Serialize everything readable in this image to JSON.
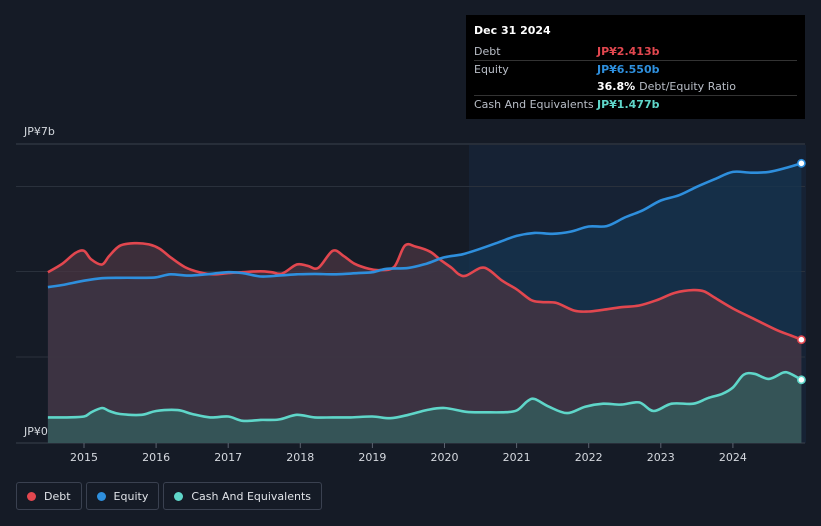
{
  "chart_data": {
    "type": "area",
    "title": "",
    "xlabel": "",
    "ylabel": "",
    "y_top_label": "JP¥7b",
    "y_bottom_label": "JP¥0",
    "ylim": [
      0,
      7
    ],
    "xlim": [
      2014.5,
      2025.0
    ],
    "x_ticks": [
      "2015",
      "2016",
      "2017",
      "2018",
      "2019",
      "2020",
      "2021",
      "2022",
      "2023",
      "2024"
    ],
    "series": [
      {
        "name": "Debt",
        "color": "#e2474f",
        "points": [
          [
            2014.5,
            4.0
          ],
          [
            2014.7,
            4.2
          ],
          [
            2014.88,
            4.45
          ],
          [
            2015.0,
            4.5
          ],
          [
            2015.1,
            4.3
          ],
          [
            2015.25,
            4.18
          ],
          [
            2015.35,
            4.38
          ],
          [
            2015.5,
            4.62
          ],
          [
            2015.7,
            4.68
          ],
          [
            2015.9,
            4.65
          ],
          [
            2016.05,
            4.55
          ],
          [
            2016.2,
            4.35
          ],
          [
            2016.4,
            4.12
          ],
          [
            2016.6,
            4.0
          ],
          [
            2016.8,
            3.95
          ],
          [
            2017.0,
            3.98
          ],
          [
            2017.2,
            4.0
          ],
          [
            2017.45,
            4.02
          ],
          [
            2017.6,
            4.0
          ],
          [
            2017.75,
            3.97
          ],
          [
            2017.95,
            4.18
          ],
          [
            2018.1,
            4.15
          ],
          [
            2018.25,
            4.1
          ],
          [
            2018.45,
            4.5
          ],
          [
            2018.6,
            4.38
          ],
          [
            2018.75,
            4.2
          ],
          [
            2018.95,
            4.08
          ],
          [
            2019.1,
            4.05
          ],
          [
            2019.3,
            4.12
          ],
          [
            2019.45,
            4.62
          ],
          [
            2019.6,
            4.6
          ],
          [
            2019.8,
            4.48
          ],
          [
            2019.95,
            4.28
          ],
          [
            2020.1,
            4.1
          ],
          [
            2020.2,
            3.95
          ],
          [
            2020.3,
            3.92
          ],
          [
            2020.5,
            4.1
          ],
          [
            2020.62,
            4.05
          ],
          [
            2020.8,
            3.8
          ],
          [
            2021.0,
            3.6
          ],
          [
            2021.2,
            3.35
          ],
          [
            2021.35,
            3.3
          ],
          [
            2021.55,
            3.28
          ],
          [
            2021.8,
            3.1
          ],
          [
            2022.0,
            3.08
          ],
          [
            2022.2,
            3.12
          ],
          [
            2022.45,
            3.18
          ],
          [
            2022.7,
            3.22
          ],
          [
            2022.95,
            3.35
          ],
          [
            2023.2,
            3.52
          ],
          [
            2023.45,
            3.58
          ],
          [
            2023.6,
            3.55
          ],
          [
            2023.75,
            3.4
          ],
          [
            2024.0,
            3.15
          ],
          [
            2024.3,
            2.9
          ],
          [
            2024.6,
            2.65
          ],
          [
            2024.8,
            2.52
          ],
          [
            2024.95,
            2.42
          ]
        ]
      },
      {
        "name": "Equity",
        "color": "#2e8fdd",
        "points": [
          [
            2014.5,
            3.65
          ],
          [
            2014.7,
            3.7
          ],
          [
            2015.0,
            3.8
          ],
          [
            2015.25,
            3.86
          ],
          [
            2015.5,
            3.87
          ],
          [
            2015.8,
            3.87
          ],
          [
            2016.0,
            3.88
          ],
          [
            2016.2,
            3.95
          ],
          [
            2016.45,
            3.92
          ],
          [
            2016.7,
            3.95
          ],
          [
            2017.0,
            4.0
          ],
          [
            2017.2,
            3.98
          ],
          [
            2017.45,
            3.9
          ],
          [
            2017.7,
            3.92
          ],
          [
            2017.95,
            3.95
          ],
          [
            2018.2,
            3.96
          ],
          [
            2018.5,
            3.95
          ],
          [
            2018.8,
            3.98
          ],
          [
            2019.0,
            4.0
          ],
          [
            2019.2,
            4.08
          ],
          [
            2019.5,
            4.1
          ],
          [
            2019.75,
            4.2
          ],
          [
            2020.0,
            4.35
          ],
          [
            2020.25,
            4.42
          ],
          [
            2020.5,
            4.55
          ],
          [
            2020.75,
            4.7
          ],
          [
            2021.0,
            4.85
          ],
          [
            2021.25,
            4.92
          ],
          [
            2021.5,
            4.9
          ],
          [
            2021.75,
            4.95
          ],
          [
            2022.0,
            5.07
          ],
          [
            2022.25,
            5.08
          ],
          [
            2022.5,
            5.28
          ],
          [
            2022.75,
            5.45
          ],
          [
            2023.0,
            5.68
          ],
          [
            2023.25,
            5.8
          ],
          [
            2023.5,
            6.0
          ],
          [
            2023.75,
            6.18
          ],
          [
            2024.0,
            6.35
          ],
          [
            2024.25,
            6.33
          ],
          [
            2024.5,
            6.35
          ],
          [
            2024.75,
            6.45
          ],
          [
            2024.95,
            6.55
          ]
        ]
      },
      {
        "name": "Cash And Equivalents",
        "color": "#5fd6c9",
        "points": [
          [
            2014.5,
            0.6
          ],
          [
            2014.75,
            0.6
          ],
          [
            2015.0,
            0.62
          ],
          [
            2015.1,
            0.72
          ],
          [
            2015.25,
            0.82
          ],
          [
            2015.35,
            0.75
          ],
          [
            2015.5,
            0.68
          ],
          [
            2015.8,
            0.66
          ],
          [
            2016.0,
            0.75
          ],
          [
            2016.3,
            0.77
          ],
          [
            2016.5,
            0.68
          ],
          [
            2016.75,
            0.6
          ],
          [
            2017.0,
            0.62
          ],
          [
            2017.2,
            0.52
          ],
          [
            2017.45,
            0.54
          ],
          [
            2017.7,
            0.55
          ],
          [
            2017.95,
            0.66
          ],
          [
            2018.2,
            0.6
          ],
          [
            2018.45,
            0.6
          ],
          [
            2018.7,
            0.6
          ],
          [
            2019.0,
            0.62
          ],
          [
            2019.25,
            0.58
          ],
          [
            2019.5,
            0.66
          ],
          [
            2019.75,
            0.77
          ],
          [
            2020.0,
            0.82
          ],
          [
            2020.3,
            0.73
          ],
          [
            2020.55,
            0.72
          ],
          [
            2020.8,
            0.72
          ],
          [
            2021.0,
            0.76
          ],
          [
            2021.15,
            0.98
          ],
          [
            2021.25,
            1.03
          ],
          [
            2021.45,
            0.85
          ],
          [
            2021.7,
            0.7
          ],
          [
            2021.95,
            0.85
          ],
          [
            2022.2,
            0.92
          ],
          [
            2022.45,
            0.9
          ],
          [
            2022.7,
            0.95
          ],
          [
            2022.9,
            0.75
          ],
          [
            2023.15,
            0.92
          ],
          [
            2023.45,
            0.92
          ],
          [
            2023.65,
            1.05
          ],
          [
            2023.85,
            1.15
          ],
          [
            2024.0,
            1.3
          ],
          [
            2024.15,
            1.6
          ],
          [
            2024.3,
            1.62
          ],
          [
            2024.5,
            1.5
          ],
          [
            2024.7,
            1.65
          ],
          [
            2024.8,
            1.62
          ],
          [
            2024.95,
            1.48
          ]
        ]
      }
    ],
    "legend": [
      "Debt",
      "Equity",
      "Cash And Equivalents"
    ]
  },
  "tooltip": {
    "date": "Dec 31 2024",
    "debt_label": "Debt",
    "debt_value": "JP¥2.413b",
    "equity_label": "Equity",
    "equity_value": "JP¥6.550b",
    "ratio_value": "36.8%",
    "ratio_text": "Debt/Equity Ratio",
    "cash_label": "Cash And Equivalents",
    "cash_value": "JP¥1.477b"
  },
  "colors": {
    "background": "#151b26",
    "debt": "#e2474f",
    "equity": "#2e8fdd",
    "cash": "#5fd6c9"
  }
}
